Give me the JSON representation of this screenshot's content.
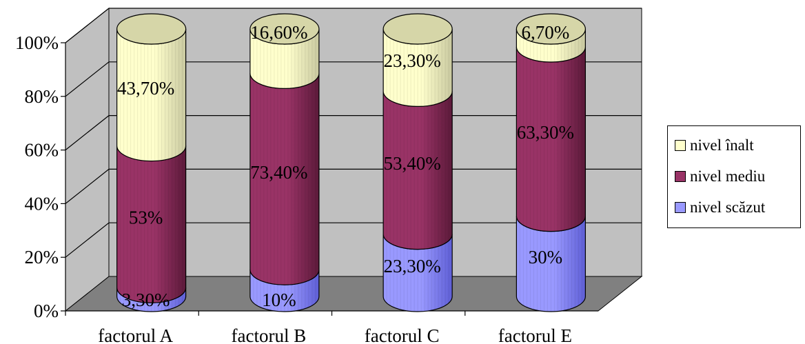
{
  "chart_data": {
    "type": "bar",
    "stacked": true,
    "percent": true,
    "categories": [
      "factorul A",
      "factorul B",
      "factorul C",
      "factorul E"
    ],
    "series": [
      {
        "name": "nivel scăzut",
        "values": [
          3.3,
          10,
          23.3,
          30
        ],
        "labels": [
          "3,30%",
          "10%",
          "23,30%",
          "30%"
        ],
        "color": "#9999ff",
        "dark": "#5f5fd6"
      },
      {
        "name": "nivel mediu",
        "values": [
          53,
          73.4,
          53.4,
          63.3
        ],
        "labels": [
          "53%",
          "73,40%",
          "53,40%",
          "63,30%"
        ],
        "color": "#993366",
        "dark": "#5c1a3a"
      },
      {
        "name": "nivel înalt",
        "values": [
          43.7,
          16.6,
          23.3,
          6.7
        ],
        "labels": [
          "43,70%",
          "16,60%",
          "23,30%",
          "6,70%"
        ],
        "color": "#ffffcc",
        "dark": "#c9c9a0"
      }
    ],
    "ylim": [
      0,
      100
    ],
    "yticks": [
      "0%",
      "20%",
      "40%",
      "60%",
      "80%",
      "100%"
    ],
    "grid": true,
    "legend_position": "right",
    "wall_color": "#c0c0c0",
    "floor_color": "#808080"
  }
}
